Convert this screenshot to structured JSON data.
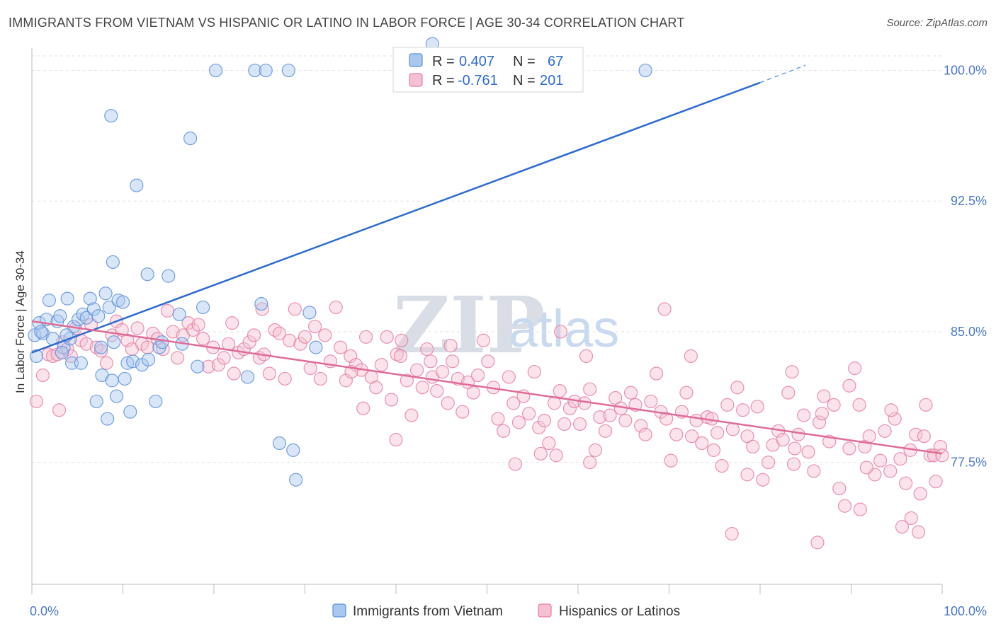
{
  "header": {
    "title": "IMMIGRANTS FROM VIETNAM VS HISPANIC OR LATINO IN LABOR FORCE | AGE 30-34 CORRELATION CHART",
    "source": "Source: ZipAtlas.com"
  },
  "watermark": {
    "zip": "ZIP",
    "atlas": "atlas"
  },
  "legend_box": {
    "rows": [
      {
        "r_label": "R =",
        "r_value": "0.407",
        "n_label": "N =",
        "n_value": "67"
      },
      {
        "r_label": "R =",
        "r_value": "-0.761",
        "n_label": "N =",
        "n_value": "201"
      }
    ]
  },
  "colors": {
    "blue": "#5b8fd9",
    "blue_fill": "#aac8ef",
    "blue_line": "#2e6bd1",
    "pink": "#e57fa1",
    "pink_fill": "#f5c0d2",
    "pink_line": "#e06b98"
  },
  "chart_data": {
    "type": "scatter",
    "title": "IMMIGRANTS FROM VIETNAM VS HISPANIC OR LATINO IN LABOR FORCE | AGE 30-34 CORRELATION CHART",
    "xlabel": "",
    "ylabel": "In Labor Force | Age 30-34",
    "xlim": [
      0,
      100
    ],
    "ylim": [
      70.5,
      101.2
    ],
    "x_tick_labels": [
      "0.0%",
      "100.0%"
    ],
    "y_ticks": [
      77.5,
      85.0,
      92.5,
      100.0
    ],
    "y_tick_labels": [
      "77.5%",
      "85.0%",
      "92.5%",
      "100.0%"
    ],
    "grid": true,
    "legend_placement": "bottom",
    "series": [
      {
        "name": "Immigrants from Vietnam",
        "r": 0.407,
        "n": 67,
        "trend": {
          "x0": 0,
          "y0": 83.8,
          "x1": 80,
          "y1": 99.3,
          "dash_to_x": 85,
          "dash_to_y": 100.3
        },
        "points": [
          [
            0.3,
            84.8
          ],
          [
            0.5,
            83.6
          ],
          [
            0.8,
            85.5
          ],
          [
            1.2,
            84.9
          ],
          [
            1.6,
            85.7
          ],
          [
            1.9,
            86.8
          ],
          [
            2.3,
            84.6
          ],
          [
            2.8,
            85.6
          ],
          [
            3.1,
            85.9
          ],
          [
            3.5,
            84.1
          ],
          [
            3.9,
            86.9
          ],
          [
            4.2,
            84.6
          ],
          [
            4.6,
            85.3
          ],
          [
            5.1,
            85.7
          ],
          [
            5.6,
            86.0
          ],
          [
            6.0,
            85.8
          ],
          [
            6.4,
            86.9
          ],
          [
            6.8,
            86.3
          ],
          [
            7.3,
            85.9
          ],
          [
            7.6,
            84.1
          ],
          [
            8.1,
            87.2
          ],
          [
            8.5,
            86.4
          ],
          [
            9.0,
            84.4
          ],
          [
            9.5,
            86.8
          ],
          [
            10.0,
            86.7
          ],
          [
            10.5,
            83.2
          ],
          [
            3.3,
            83.8
          ],
          [
            3.8,
            84.8
          ],
          [
            4.4,
            83.2
          ],
          [
            5.4,
            83.2
          ],
          [
            7.1,
            81.0
          ],
          [
            7.7,
            82.5
          ],
          [
            8.3,
            80.0
          ],
          [
            8.8,
            82.2
          ],
          [
            9.3,
            81.3
          ],
          [
            10.2,
            82.3
          ],
          [
            10.8,
            80.4
          ],
          [
            11.1,
            83.3
          ],
          [
            12.1,
            83.1
          ],
          [
            12.8,
            83.4
          ],
          [
            13.6,
            81.0
          ],
          [
            14.0,
            84.1
          ],
          [
            14.3,
            84.4
          ],
          [
            8.9,
            89.0
          ],
          [
            12.7,
            88.3
          ],
          [
            15.0,
            88.2
          ],
          [
            16.2,
            86.0
          ],
          [
            16.5,
            84.3
          ],
          [
            18.2,
            83.0
          ],
          [
            18.8,
            86.4
          ],
          [
            20.2,
            100.0
          ],
          [
            24.5,
            100.0
          ],
          [
            25.7,
            100.0
          ],
          [
            28.2,
            100.0
          ],
          [
            67.4,
            100.0
          ],
          [
            8.7,
            97.4
          ],
          [
            17.4,
            96.1
          ],
          [
            11.5,
            93.4
          ],
          [
            23.7,
            82.4
          ],
          [
            25.2,
            86.6
          ],
          [
            30.5,
            86.1
          ],
          [
            31.2,
            84.1
          ],
          [
            27.2,
            78.6
          ],
          [
            28.7,
            78.2
          ],
          [
            29.0,
            76.5
          ],
          [
            44.0,
            101.6
          ],
          [
            1.0,
            85.0
          ]
        ]
      },
      {
        "name": "Hispanics or Latinos",
        "r": -0.761,
        "n": 201,
        "trend": {
          "x0": 0,
          "y0": 85.6,
          "x1": 100,
          "y1": 78.0
        },
        "points": [
          [
            0.5,
            81.0
          ],
          [
            1.2,
            82.5
          ],
          [
            1.8,
            83.7
          ],
          [
            2.3,
            83.6
          ],
          [
            2.8,
            83.7
          ],
          [
            3.4,
            84.4
          ],
          [
            3.9,
            84.0
          ],
          [
            4.3,
            83.6
          ],
          [
            4.8,
            85.2
          ],
          [
            5.4,
            84.5
          ],
          [
            6.0,
            84.3
          ],
          [
            6.5,
            85.4
          ],
          [
            7.1,
            84.1
          ],
          [
            7.6,
            83.9
          ],
          [
            8.2,
            83.2
          ],
          [
            8.8,
            84.8
          ],
          [
            9.3,
            85.6
          ],
          [
            9.9,
            85.1
          ],
          [
            10.5,
            84.5
          ],
          [
            11.0,
            84.0
          ],
          [
            11.6,
            85.2
          ],
          [
            12.1,
            84.3
          ],
          [
            12.7,
            84.1
          ],
          [
            13.3,
            84.9
          ],
          [
            13.8,
            84.6
          ],
          [
            14.4,
            84.0
          ],
          [
            14.9,
            86.2
          ],
          [
            15.5,
            85.0
          ],
          [
            16.0,
            83.5
          ],
          [
            16.6,
            84.8
          ],
          [
            17.2,
            85.5
          ],
          [
            17.7,
            85.1
          ],
          [
            18.3,
            85.4
          ],
          [
            18.8,
            84.6
          ],
          [
            19.4,
            83.0
          ],
          [
            19.9,
            84.1
          ],
          [
            20.5,
            83.1
          ],
          [
            21.1,
            83.5
          ],
          [
            21.6,
            84.3
          ],
          [
            22.2,
            82.6
          ],
          [
            22.7,
            83.8
          ],
          [
            23.3,
            84.0
          ],
          [
            23.9,
            84.4
          ],
          [
            24.4,
            84.8
          ],
          [
            25.0,
            83.5
          ],
          [
            25.5,
            83.7
          ],
          [
            26.1,
            82.6
          ],
          [
            26.7,
            85.1
          ],
          [
            27.2,
            84.9
          ],
          [
            27.8,
            82.3
          ],
          [
            28.3,
            84.5
          ],
          [
            28.9,
            86.3
          ],
          [
            29.5,
            84.3
          ],
          [
            30.0,
            84.7
          ],
          [
            30.6,
            82.9
          ],
          [
            31.1,
            85.3
          ],
          [
            31.7,
            82.3
          ],
          [
            32.2,
            84.8
          ],
          [
            32.8,
            83.3
          ],
          [
            33.4,
            86.4
          ],
          [
            33.9,
            84.1
          ],
          [
            34.5,
            82.2
          ],
          [
            35.0,
            83.6
          ],
          [
            35.6,
            83.1
          ],
          [
            36.2,
            82.8
          ],
          [
            36.7,
            84.7
          ],
          [
            37.3,
            82.4
          ],
          [
            37.8,
            81.8
          ],
          [
            38.4,
            83.1
          ],
          [
            39.0,
            84.7
          ],
          [
            39.5,
            81.1
          ],
          [
            40.1,
            83.7
          ],
          [
            40.6,
            84.5
          ],
          [
            41.2,
            82.2
          ],
          [
            41.7,
            80.2
          ],
          [
            42.3,
            82.8
          ],
          [
            42.9,
            81.8
          ],
          [
            43.4,
            84.0
          ],
          [
            44.0,
            82.4
          ],
          [
            44.5,
            81.6
          ],
          [
            45.1,
            82.7
          ],
          [
            45.7,
            80.9
          ],
          [
            46.2,
            83.3
          ],
          [
            46.8,
            82.3
          ],
          [
            47.3,
            80.4
          ],
          [
            47.9,
            82.1
          ],
          [
            48.5,
            81.5
          ],
          [
            49.0,
            82.5
          ],
          [
            49.6,
            84.5
          ],
          [
            50.1,
            83.3
          ],
          [
            50.7,
            81.8
          ],
          [
            51.2,
            80.0
          ],
          [
            51.8,
            79.3
          ],
          [
            52.4,
            82.4
          ],
          [
            52.9,
            80.9
          ],
          [
            53.5,
            79.8
          ],
          [
            54.0,
            81.3
          ],
          [
            54.6,
            80.3
          ],
          [
            55.2,
            82.7
          ],
          [
            55.7,
            79.5
          ],
          [
            56.3,
            79.9
          ],
          [
            56.8,
            78.6
          ],
          [
            57.4,
            80.9
          ],
          [
            58.0,
            81.6
          ],
          [
            58.5,
            79.7
          ],
          [
            59.1,
            80.6
          ],
          [
            59.6,
            81.0
          ],
          [
            60.2,
            79.7
          ],
          [
            60.7,
            80.9
          ],
          [
            61.3,
            81.7
          ],
          [
            61.9,
            78.2
          ],
          [
            62.4,
            80.1
          ],
          [
            63.0,
            79.3
          ],
          [
            63.5,
            80.2
          ],
          [
            64.1,
            81.2
          ],
          [
            64.7,
            80.6
          ],
          [
            65.2,
            79.9
          ],
          [
            65.8,
            81.5
          ],
          [
            66.3,
            80.8
          ],
          [
            66.9,
            79.6
          ],
          [
            67.4,
            79.1
          ],
          [
            68.0,
            81.0
          ],
          [
            68.6,
            82.6
          ],
          [
            69.1,
            80.4
          ],
          [
            69.7,
            80.0
          ],
          [
            70.2,
            77.6
          ],
          [
            70.8,
            79.1
          ],
          [
            71.4,
            80.4
          ],
          [
            71.9,
            81.5
          ],
          [
            72.5,
            79.0
          ],
          [
            73.0,
            79.9
          ],
          [
            73.6,
            78.6
          ],
          [
            74.2,
            80.1
          ],
          [
            74.7,
            80.0
          ],
          [
            75.3,
            79.2
          ],
          [
            75.8,
            77.3
          ],
          [
            76.4,
            80.8
          ],
          [
            77.0,
            79.4
          ],
          [
            77.5,
            81.8
          ],
          [
            78.1,
            80.5
          ],
          [
            78.6,
            79.0
          ],
          [
            79.2,
            78.4
          ],
          [
            79.7,
            80.7
          ],
          [
            80.3,
            76.5
          ],
          [
            80.9,
            77.5
          ],
          [
            81.4,
            78.5
          ],
          [
            82.0,
            79.3
          ],
          [
            82.5,
            78.8
          ],
          [
            83.1,
            81.5
          ],
          [
            83.7,
            77.4
          ],
          [
            84.2,
            79.1
          ],
          [
            84.8,
            80.2
          ],
          [
            85.3,
            78.1
          ],
          [
            85.9,
            77.0
          ],
          [
            86.5,
            79.8
          ],
          [
            87.0,
            81.3
          ],
          [
            87.6,
            78.7
          ],
          [
            88.1,
            80.8
          ],
          [
            88.7,
            76.0
          ],
          [
            89.3,
            75.0
          ],
          [
            89.8,
            78.3
          ],
          [
            90.4,
            82.9
          ],
          [
            90.9,
            80.8
          ],
          [
            91.5,
            78.4
          ],
          [
            92.0,
            79.0
          ],
          [
            92.6,
            76.8
          ],
          [
            93.2,
            77.6
          ],
          [
            93.7,
            79.3
          ],
          [
            94.3,
            77.0
          ],
          [
            94.8,
            80.0
          ],
          [
            95.4,
            77.7
          ],
          [
            96.0,
            76.3
          ],
          [
            96.5,
            78.2
          ],
          [
            97.1,
            79.1
          ],
          [
            97.6,
            75.7
          ],
          [
            98.2,
            80.8
          ],
          [
            98.7,
            77.9
          ],
          [
            99.3,
            76.4
          ],
          [
            99.8,
            78.4
          ],
          [
            69.5,
            86.3
          ],
          [
            58.1,
            85.0
          ],
          [
            46.0,
            84.2
          ],
          [
            40.5,
            83.6
          ],
          [
            36.4,
            80.6
          ],
          [
            53.1,
            77.4
          ],
          [
            61.3,
            77.5
          ],
          [
            74.9,
            78.2
          ],
          [
            86.3,
            72.9
          ],
          [
            83.5,
            82.7
          ],
          [
            91.0,
            74.8
          ],
          [
            97.4,
            73.5
          ],
          [
            76.9,
            73.4
          ],
          [
            95.6,
            73.8
          ],
          [
            3.0,
            80.5
          ],
          [
            57.6,
            77.9
          ],
          [
            78.6,
            76.8
          ],
          [
            96.6,
            74.3
          ],
          [
            22.0,
            85.5
          ],
          [
            35.1,
            82.7
          ],
          [
            25.3,
            86.3
          ],
          [
            43.8,
            83.3
          ],
          [
            60.9,
            83.6
          ],
          [
            72.4,
            83.6
          ],
          [
            89.8,
            81.9
          ],
          [
            83.8,
            78.3
          ],
          [
            94.4,
            80.5
          ],
          [
            99.1,
            77.9
          ],
          [
            100.3,
            77.9
          ],
          [
            40.0,
            78.8
          ],
          [
            55.9,
            78.0
          ],
          [
            91.7,
            77.2
          ],
          [
            98.0,
            79.0
          ],
          [
            86.8,
            80.3
          ]
        ]
      }
    ]
  },
  "bottom_legend": {
    "items": [
      {
        "label": "Immigrants from Vietnam"
      },
      {
        "label": "Hispanics or Latinos"
      }
    ]
  }
}
